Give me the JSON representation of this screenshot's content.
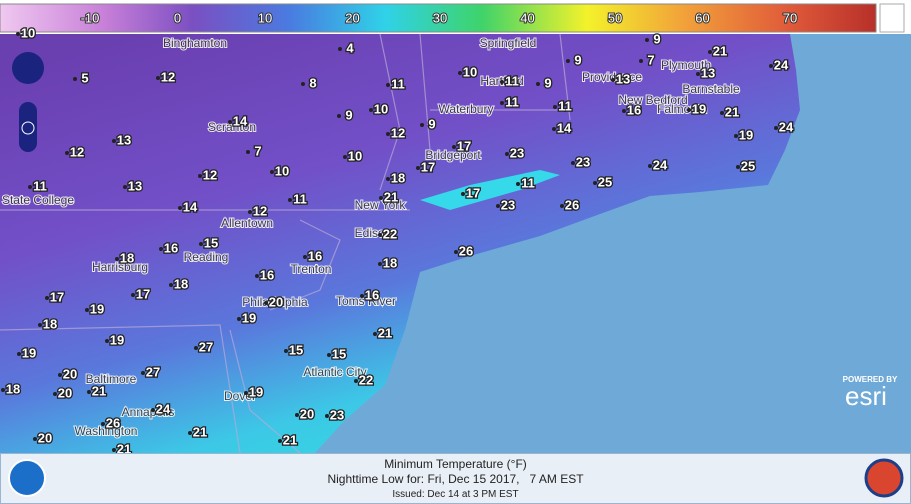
{
  "legend_ticks": [
    -10,
    0,
    10,
    20,
    30,
    40,
    50,
    60,
    70
  ],
  "places": [
    "Binghamton",
    "Springfield",
    "Providence",
    "Plymouth",
    "Barnstable",
    "New Bedford",
    "Falmouth",
    "Hartford",
    "Waterbury",
    "Scranton",
    "Bridgeport",
    "New York",
    "Edison",
    "Allentown",
    "Reading",
    "Harrisburg",
    "Trenton",
    "Philadelphia",
    "Toms River",
    "Atlantic City",
    "State College",
    "Baltimore",
    "Annapolis",
    "Washington",
    "Dover"
  ],
  "temperatures": [
    10,
    4,
    9,
    21,
    7,
    24,
    5,
    12,
    8,
    11,
    10,
    11,
    9,
    9,
    13,
    13,
    10,
    9,
    11,
    11,
    16,
    19,
    21,
    24,
    14,
    12,
    9,
    14,
    19,
    13,
    7,
    10,
    17,
    23,
    12,
    17,
    23,
    24,
    25,
    12,
    10,
    18,
    25,
    11,
    13,
    11,
    21,
    17,
    11,
    14,
    12,
    23,
    26,
    22,
    16,
    15,
    16,
    26,
    18,
    18,
    16,
    17,
    17,
    18,
    16,
    19,
    20,
    19,
    18,
    19,
    21,
    27,
    19,
    15,
    15,
    20,
    27,
    22,
    18,
    20,
    21,
    24,
    19,
    26,
    20,
    23,
    20,
    21,
    21,
    21
  ],
  "footer": {
    "title": "Minimum Temperature (°F)",
    "subtitle": "Nighttime Low for: Fri, Dec 15 2017,   7 AM EST",
    "issued": "Issued: Dec 14 at 3 PM EST"
  },
  "attribution": {
    "powered": "POWERED BY",
    "brand": "esri"
  }
}
